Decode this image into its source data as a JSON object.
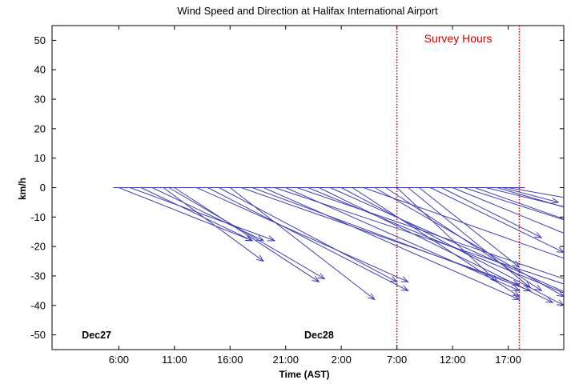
{
  "chart_data": {
    "type": "quiver",
    "title": "Wind Speed and Direction at Halifax International Airport",
    "xlabel": "Time (AST)",
    "ylabel": "km/h",
    "ylim": [
      -55,
      55
    ],
    "xlim": [
      "Dec27 00:00",
      "Dec28 22:00"
    ],
    "y_ticks": [
      50,
      40,
      30,
      20,
      10,
      0,
      -10,
      -20,
      -30,
      -40,
      -50
    ],
    "x_ticks": [
      {
        "time": "Dec27 06:00",
        "label": "6:00"
      },
      {
        "time": "Dec27 11:00",
        "label": "11:00"
      },
      {
        "time": "Dec27 16:00",
        "label": "16:00"
      },
      {
        "time": "Dec27 21:00",
        "label": "21:00"
      },
      {
        "time": "Dec28 02:00",
        "label": "2:00"
      },
      {
        "time": "Dec28 07:00",
        "label": "7:00"
      },
      {
        "time": "Dec28 12:00",
        "label": "12:00"
      },
      {
        "time": "Dec28 17:00",
        "label": "17:00"
      }
    ],
    "date_labels": [
      {
        "time": "Dec27 04:00",
        "label": "Dec27"
      },
      {
        "time": "Dec28 00:00",
        "label": "Dec28"
      }
    ],
    "baseline": {
      "start": "Dec27 05:30",
      "end": "Dec28 18:30",
      "y": 0
    },
    "survey_hours": {
      "label": "Survey Hours",
      "start": "Dec28 07:00",
      "end": "Dec28 18:00",
      "color": "#cc0000"
    },
    "arrow_color": "#4040b0",
    "vectors": [
      {
        "time": "Dec27 06:00",
        "u": 12,
        "v": -18
      },
      {
        "time": "Dec27 07:00",
        "u": 13,
        "v": -18
      },
      {
        "time": "Dec27 08:00",
        "u": 10,
        "v": -18
      },
      {
        "time": "Dec27 09:00",
        "u": 10,
        "v": -18
      },
      {
        "time": "Dec27 10:00",
        "u": 9,
        "v": -25
      },
      {
        "time": "Dec27 10:30",
        "u": 14,
        "v": -31
      },
      {
        "time": "Dec27 11:00",
        "u": 13,
        "v": -32
      },
      {
        "time": "Dec27 13:00",
        "u": 19,
        "v": -32
      },
      {
        "time": "Dec27 14:00",
        "u": 18,
        "v": -35
      },
      {
        "time": "Dec27 15:00",
        "u": 16,
        "v": -32
      },
      {
        "time": "Dec27 16:00",
        "u": 13,
        "v": -38
      },
      {
        "time": "Dec27 17:00",
        "u": 25,
        "v": -33
      },
      {
        "time": "Dec27 18:00",
        "u": 25,
        "v": -35
      },
      {
        "time": "Dec27 19:00",
        "u": 23,
        "v": -38
      },
      {
        "time": "Dec27 20:00",
        "u": 31,
        "v": -39
      },
      {
        "time": "Dec27 21:00",
        "u": 21,
        "v": -35
      },
      {
        "time": "Dec27 22:00",
        "u": 31,
        "v": -40
      },
      {
        "time": "Dec27 23:00",
        "u": 27,
        "v": -42
      },
      {
        "time": "Dec28 00:00",
        "u": 21,
        "v": -39
      },
      {
        "time": "Dec28 01:00",
        "u": 22,
        "v": -37
      },
      {
        "time": "Dec28 02:00",
        "u": 20,
        "v": -40
      },
      {
        "time": "Dec28 03:00",
        "u": 15,
        "v": -37
      },
      {
        "time": "Dec28 04:00",
        "u": 24,
        "v": -32
      },
      {
        "time": "Dec28 05:00",
        "u": 17,
        "v": -37
      },
      {
        "time": "Dec28 06:00",
        "u": 14,
        "v": -35
      },
      {
        "time": "Dec28 07:00",
        "u": 9,
        "v": -32
      },
      {
        "time": "Dec28 08:00",
        "u": 11,
        "v": -34
      },
      {
        "time": "Dec28 09:00",
        "u": 9,
        "v": -27
      },
      {
        "time": "Dec28 10:00",
        "u": 12,
        "v": -22
      },
      {
        "time": "Dec28 11:00",
        "u": 9,
        "v": -17
      },
      {
        "time": "Dec28 12:00",
        "u": 11,
        "v": -17
      },
      {
        "time": "Dec28 13:00",
        "u": 14,
        "v": -17
      },
      {
        "time": "Dec28 14:00",
        "u": 15,
        "v": -20
      },
      {
        "time": "Dec28 15:00",
        "u": 13,
        "v": -12
      },
      {
        "time": "Dec28 16:00",
        "u": 10,
        "v": -11
      },
      {
        "time": "Dec28 16:30",
        "u": 5,
        "v": -5
      },
      {
        "time": "Dec28 17:00",
        "u": 12,
        "v": -8
      }
    ]
  }
}
